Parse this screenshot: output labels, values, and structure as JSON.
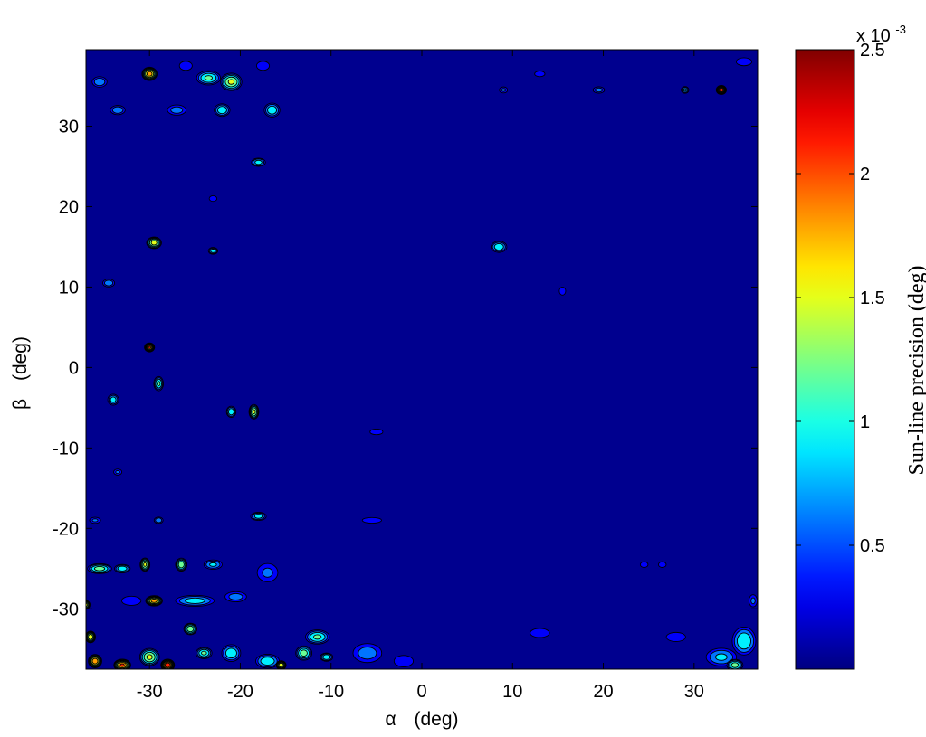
{
  "chart_data": {
    "type": "heatmap",
    "subtype": "filled-contour",
    "colormap": "jet",
    "background_level": "dark-blue",
    "x": {
      "symbol": "α",
      "unit_label": "(deg)",
      "range": [
        -37,
        37
      ],
      "ticks": [
        -30,
        -20,
        -10,
        0,
        10,
        20,
        30
      ],
      "tick_labels": [
        "-30",
        "-20",
        "-10",
        "0",
        "10",
        "20",
        "30"
      ]
    },
    "y": {
      "symbol": "β",
      "unit_label": "(deg)",
      "range": [
        -37.5,
        39.5
      ],
      "ticks": [
        30,
        20,
        10,
        0,
        -10,
        -20,
        -30
      ],
      "tick_labels": [
        "30",
        "20",
        "10",
        "0",
        "-10",
        "-20",
        "-30"
      ]
    },
    "colorbar": {
      "label": "Sun-line precision (deg)",
      "exponent_prefix": "x 10",
      "exponent": "-3",
      "range": [
        0,
        2.5
      ],
      "ticks": [
        0.5,
        1,
        1.5,
        2,
        2.5
      ],
      "tick_labels": [
        "0.5",
        "1",
        "1.5",
        "2",
        "2.5"
      ]
    },
    "grid": false,
    "blobs": [
      {
        "a": -30,
        "b": 36.5,
        "v": 2.0,
        "sa": 0.9,
        "sb": 0.9
      },
      {
        "a": -23.5,
        "b": 36.0,
        "v": 1.3,
        "sa": 1.5,
        "sb": 1.0
      },
      {
        "a": -21,
        "b": 35.5,
        "v": 1.6,
        "sa": 1.3,
        "sb": 1.2
      },
      {
        "a": -35.5,
        "b": 35.5,
        "v": 0.9,
        "sa": 1.0,
        "sb": 0.8
      },
      {
        "a": -26,
        "b": 37.5,
        "v": 0.6,
        "sa": 1.0,
        "sb": 0.8
      },
      {
        "a": -17.5,
        "b": 37.5,
        "v": 0.6,
        "sa": 1.0,
        "sb": 0.8
      },
      {
        "a": -33.5,
        "b": 32.0,
        "v": 0.9,
        "sa": 1.0,
        "sb": 0.7
      },
      {
        "a": -27,
        "b": 32.0,
        "v": 0.8,
        "sa": 1.3,
        "sb": 0.8
      },
      {
        "a": -22,
        "b": 32.0,
        "v": 1.2,
        "sa": 1.0,
        "sb": 0.9
      },
      {
        "a": -16.5,
        "b": 32.0,
        "v": 1.2,
        "sa": 1.0,
        "sb": 1.0
      },
      {
        "a": 33,
        "b": 34.5,
        "v": 2.4,
        "sa": 0.6,
        "sb": 0.6
      },
      {
        "a": 29,
        "b": 34.5,
        "v": 1.0,
        "sa": 0.5,
        "sb": 0.5
      },
      {
        "a": 19.5,
        "b": 34.5,
        "v": 0.8,
        "sa": 0.8,
        "sb": 0.5
      },
      {
        "a": 9,
        "b": 34.5,
        "v": 0.7,
        "sa": 0.6,
        "sb": 0.5
      },
      {
        "a": 35.5,
        "b": 38.0,
        "v": 0.6,
        "sa": 1.2,
        "sb": 0.7
      },
      {
        "a": 13,
        "b": 36.5,
        "v": 0.6,
        "sa": 0.8,
        "sb": 0.5
      },
      {
        "a": -18,
        "b": 25.5,
        "v": 1.1,
        "sa": 0.9,
        "sb": 0.6
      },
      {
        "a": -29.5,
        "b": 15.5,
        "v": 1.7,
        "sa": 0.9,
        "sb": 0.8
      },
      {
        "a": 8.5,
        "b": 15.0,
        "v": 1.2,
        "sa": 1.0,
        "sb": 0.8
      },
      {
        "a": -23,
        "b": 14.5,
        "v": 1.1,
        "sa": 0.6,
        "sb": 0.5
      },
      {
        "a": -23,
        "b": 21.0,
        "v": 0.6,
        "sa": 0.6,
        "sb": 0.5
      },
      {
        "a": -34.5,
        "b": 10.5,
        "v": 0.9,
        "sa": 0.8,
        "sb": 0.6
      },
      {
        "a": -30,
        "b": 2.5,
        "v": 2.2,
        "sa": 0.6,
        "sb": 0.6
      },
      {
        "a": -29,
        "b": -2.0,
        "v": 1.3,
        "sa": 0.6,
        "sb": 1.0
      },
      {
        "a": -34,
        "b": -4.0,
        "v": 1.1,
        "sa": 0.7,
        "sb": 0.8
      },
      {
        "a": -21,
        "b": -5.5,
        "v": 1.2,
        "sa": 0.6,
        "sb": 0.8
      },
      {
        "a": -18.5,
        "b": -5.5,
        "v": 1.6,
        "sa": 0.6,
        "sb": 1.0
      },
      {
        "a": -5,
        "b": -8.0,
        "v": 0.6,
        "sa": 1.0,
        "sb": 0.5
      },
      {
        "a": -33.5,
        "b": -13.0,
        "v": 0.7,
        "sa": 0.6,
        "sb": 0.5
      },
      {
        "a": -18,
        "b": -18.5,
        "v": 1.1,
        "sa": 1.0,
        "sb": 0.6
      },
      {
        "a": -29,
        "b": -19.0,
        "v": 0.9,
        "sa": 0.6,
        "sb": 0.5
      },
      {
        "a": -36,
        "b": -19.0,
        "v": 0.7,
        "sa": 0.8,
        "sb": 0.5
      },
      {
        "a": -5.5,
        "b": -19.0,
        "v": 0.6,
        "sa": 1.5,
        "sb": 0.5
      },
      {
        "a": -35.5,
        "b": -25.0,
        "v": 1.4,
        "sa": 1.5,
        "sb": 0.7
      },
      {
        "a": -33,
        "b": -25.0,
        "v": 1.2,
        "sa": 1.0,
        "sb": 0.6
      },
      {
        "a": -30.5,
        "b": -24.5,
        "v": 1.6,
        "sa": 0.6,
        "sb": 0.9
      },
      {
        "a": -26.5,
        "b": -24.5,
        "v": 1.5,
        "sa": 0.7,
        "sb": 0.9
      },
      {
        "a": -23,
        "b": -24.5,
        "v": 1.0,
        "sa": 1.2,
        "sb": 0.7
      },
      {
        "a": -17,
        "b": -25.5,
        "v": 0.7,
        "sa": 1.5,
        "sb": 1.5
      },
      {
        "a": -32,
        "b": -29.0,
        "v": 0.6,
        "sa": 1.5,
        "sb": 0.8
      },
      {
        "a": -29.5,
        "b": -29.0,
        "v": 2.0,
        "sa": 1.0,
        "sb": 0.7
      },
      {
        "a": -25,
        "b": -29.0,
        "v": 1.1,
        "sa": 2.5,
        "sb": 0.8
      },
      {
        "a": -20.5,
        "b": -28.5,
        "v": 0.8,
        "sa": 1.5,
        "sb": 0.8
      },
      {
        "a": -37,
        "b": -29.5,
        "v": 1.7,
        "sa": 0.5,
        "sb": 0.6
      },
      {
        "a": -36.5,
        "b": -33.5,
        "v": 1.8,
        "sa": 0.6,
        "sb": 0.8
      },
      {
        "a": -36,
        "b": -36.5,
        "v": 2.1,
        "sa": 0.8,
        "sb": 0.9
      },
      {
        "a": -33,
        "b": -37.0,
        "v": 2.2,
        "sa": 1.0,
        "sb": 0.8
      },
      {
        "a": -30,
        "b": -36.0,
        "v": 1.6,
        "sa": 1.2,
        "sb": 1.2
      },
      {
        "a": -28,
        "b": -37.0,
        "v": 2.4,
        "sa": 0.8,
        "sb": 0.8
      },
      {
        "a": -25.5,
        "b": -32.5,
        "v": 1.5,
        "sa": 0.8,
        "sb": 0.8
      },
      {
        "a": -24,
        "b": -35.5,
        "v": 1.3,
        "sa": 1.0,
        "sb": 0.8
      },
      {
        "a": -21,
        "b": -35.5,
        "v": 1.2,
        "sa": 1.2,
        "sb": 1.2
      },
      {
        "a": -17,
        "b": -36.5,
        "v": 1.2,
        "sa": 1.5,
        "sb": 1.0
      },
      {
        "a": -15.5,
        "b": -37.0,
        "v": 1.8,
        "sa": 0.6,
        "sb": 0.6
      },
      {
        "a": -13,
        "b": -35.5,
        "v": 1.4,
        "sa": 1.0,
        "sb": 1.0
      },
      {
        "a": -11.5,
        "b": -33.5,
        "v": 1.3,
        "sa": 1.5,
        "sb": 1.0
      },
      {
        "a": -10.5,
        "b": -36.0,
        "v": 1.2,
        "sa": 0.8,
        "sb": 0.6
      },
      {
        "a": -6,
        "b": -35.5,
        "v": 0.8,
        "sa": 2.0,
        "sb": 1.5
      },
      {
        "a": -2,
        "b": -36.5,
        "v": 0.6,
        "sa": 1.5,
        "sb": 1.0
      },
      {
        "a": 13,
        "b": -33.0,
        "v": 0.6,
        "sa": 1.5,
        "sb": 0.8
      },
      {
        "a": 28,
        "b": -33.5,
        "v": 0.6,
        "sa": 1.5,
        "sb": 0.8
      },
      {
        "a": 33,
        "b": -36.0,
        "v": 1.0,
        "sa": 2.0,
        "sb": 1.3
      },
      {
        "a": 35.5,
        "b": -34.0,
        "v": 1.2,
        "sa": 1.5,
        "sb": 2.0
      },
      {
        "a": 34.5,
        "b": -37.0,
        "v": 1.4,
        "sa": 1.0,
        "sb": 0.8
      },
      {
        "a": 36.5,
        "b": -29.0,
        "v": 0.7,
        "sa": 0.6,
        "sb": 1.0
      },
      {
        "a": 15.5,
        "b": 9.5,
        "v": 0.6,
        "sa": 0.5,
        "sb": 0.7
      },
      {
        "a": 24.5,
        "b": -24.5,
        "v": 0.6,
        "sa": 0.6,
        "sb": 0.5
      },
      {
        "a": 26.5,
        "b": -24.5,
        "v": 0.6,
        "sa": 0.6,
        "sb": 0.5
      }
    ]
  }
}
